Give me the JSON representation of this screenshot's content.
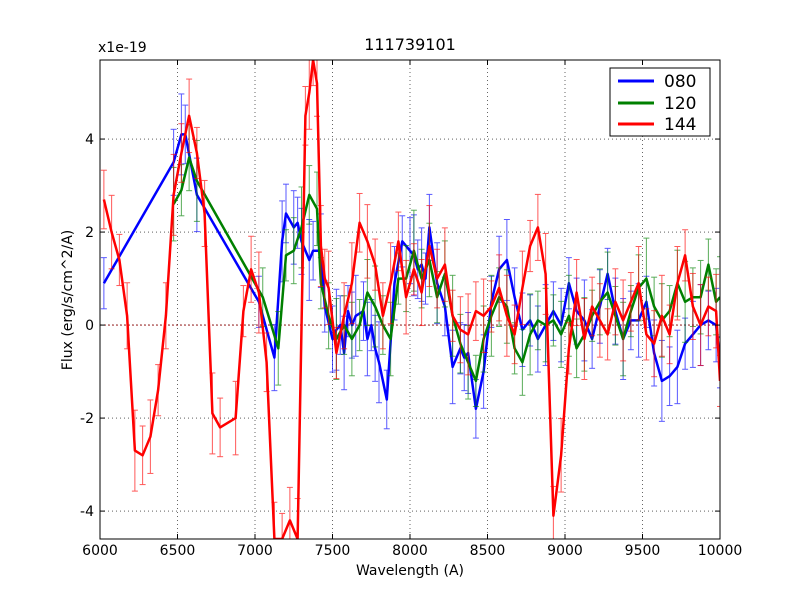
{
  "chart_data": {
    "type": "line",
    "title": "111739101",
    "xlabel": "Wavelength (A)",
    "ylabel": "Flux (erg/s/cm^2/A)",
    "y_scale_label": "x1e-19",
    "xlim": [
      6000,
      10000
    ],
    "ylim": [
      -4.6,
      5.7
    ],
    "xticks": [
      6000,
      6500,
      7000,
      7500,
      8000,
      8500,
      9000,
      9500,
      10000
    ],
    "yticks": [
      -4,
      -2,
      0,
      2,
      4
    ],
    "grid": true,
    "legend_position": "top-right",
    "series": [
      {
        "name": "080",
        "color": "#0000ff",
        "x": [
          6025,
          6475,
          6525,
          6550,
          6625,
          7025,
          7125,
          7175,
          7200,
          7250,
          7275,
          7300,
          7350,
          7375,
          7425,
          7450,
          7500,
          7525,
          7550,
          7575,
          7600,
          7625,
          7650,
          7700,
          7725,
          7750,
          7775,
          7800,
          7850,
          7900,
          7950,
          8000,
          8025,
          8050,
          8075,
          8100,
          8125,
          8175,
          8225,
          8275,
          8325,
          8350,
          8375,
          8425,
          8475,
          8525,
          8575,
          8625,
          8675,
          8725,
          8775,
          8825,
          8875,
          8925,
          8975,
          9025,
          9075,
          9125,
          9175,
          9225,
          9275,
          9325,
          9375,
          9425,
          9475,
          9525,
          9575,
          9625,
          9675,
          9725,
          9775,
          9825,
          9875,
          9925,
          9975,
          10000
        ],
        "y": [
          0.9,
          3.5,
          4.1,
          4.1,
          2.8,
          0.5,
          -0.7,
          1.8,
          2.4,
          2.1,
          2.2,
          1.8,
          1.4,
          1.6,
          1.6,
          0.4,
          -0.3,
          -0.1,
          0.0,
          -0.6,
          0.3,
          0.0,
          0.2,
          0.3,
          -0.3,
          0.0,
          -0.5,
          -0.8,
          -1.6,
          0.9,
          1.8,
          1.6,
          1.5,
          1.2,
          1.3,
          1.0,
          2.1,
          0.9,
          0.4,
          -0.9,
          -0.5,
          -0.7,
          -0.6,
          -1.8,
          -1.0,
          0.5,
          1.2,
          1.4,
          0.6,
          -0.1,
          0.1,
          -0.3,
          0.0,
          0.3,
          0.0,
          0.9,
          0.3,
          0.1,
          -0.3,
          0.4,
          1.1,
          0.3,
          -0.3,
          0.1,
          0.1,
          0.5,
          -0.6,
          -1.2,
          -1.1,
          -0.9,
          -0.4,
          -0.2,
          0.0,
          0.1,
          0.0,
          -0.8
        ]
      },
      {
        "name": "120",
        "color": "#008000",
        "x": [
          6475,
          6525,
          6575,
          6625,
          7050,
          7150,
          7200,
          7250,
          7300,
          7350,
          7400,
          7425,
          7475,
          7525,
          7575,
          7625,
          7675,
          7725,
          7775,
          7825,
          7875,
          7925,
          7975,
          8025,
          8075,
          8125,
          8175,
          8225,
          8275,
          8325,
          8375,
          8425,
          8475,
          8525,
          8575,
          8625,
          8675,
          8725,
          8775,
          8825,
          8875,
          8925,
          8975,
          9025,
          9075,
          9125,
          9175,
          9225,
          9275,
          9325,
          9375,
          9425,
          9475,
          9525,
          9575,
          9625,
          9675,
          9725,
          9775,
          9825,
          9875,
          9925,
          9975,
          10000
        ],
        "y": [
          2.6,
          2.9,
          3.6,
          3.1,
          0.6,
          -0.5,
          1.5,
          1.6,
          2.1,
          2.8,
          2.5,
          0.9,
          0.2,
          -0.3,
          0.0,
          -0.3,
          0.0,
          0.7,
          0.4,
          0.0,
          -0.3,
          1.0,
          1.0,
          1.6,
          1.0,
          1.4,
          0.6,
          1.1,
          0.2,
          -0.4,
          -0.8,
          -1.2,
          -0.3,
          0.2,
          0.6,
          0.4,
          -0.5,
          -0.8,
          -0.2,
          0.1,
          0.0,
          0.1,
          -0.2,
          0.2,
          -0.5,
          -0.2,
          0.2,
          0.5,
          0.7,
          0.2,
          -0.3,
          0.3,
          0.8,
          1.0,
          0.4,
          0.1,
          0.3,
          0.9,
          0.5,
          0.6,
          0.6,
          1.3,
          0.5,
          0.6
        ]
      },
      {
        "name": "144",
        "color": "#ff0000",
        "x": [
          6025,
          6075,
          6125,
          6175,
          6225,
          6275,
          6325,
          6375,
          6425,
          6475,
          6525,
          6575,
          6625,
          6675,
          6725,
          6775,
          6875,
          6925,
          6975,
          7025,
          7075,
          7125,
          7175,
          7225,
          7275,
          7325,
          7350,
          7375,
          7400,
          7425,
          7450,
          7475,
          7525,
          7575,
          7625,
          7675,
          7725,
          7775,
          7825,
          7875,
          7925,
          7975,
          8025,
          8075,
          8125,
          8175,
          8225,
          8275,
          8325,
          8375,
          8425,
          8475,
          8525,
          8575,
          8625,
          8675,
          8725,
          8775,
          8825,
          8875,
          8925,
          8975,
          9025,
          9075,
          9125,
          9175,
          9225,
          9275,
          9325,
          9375,
          9425,
          9475,
          9525,
          9575,
          9625,
          9675,
          9725,
          9775,
          9825,
          9875,
          9925,
          9975,
          10000
        ],
        "y": [
          2.7,
          2.0,
          1.4,
          0.2,
          -2.7,
          -2.8,
          -2.4,
          -1.4,
          0.2,
          2.8,
          3.7,
          4.5,
          3.7,
          2.4,
          -1.9,
          -2.2,
          -2.0,
          0.3,
          1.2,
          0.7,
          -0.8,
          -4.6,
          -4.6,
          -4.2,
          -4.6,
          4.5,
          5.0,
          5.7,
          5.2,
          1.7,
          1.0,
          0.8,
          -0.6,
          0.2,
          0.9,
          2.2,
          1.8,
          1.3,
          0.2,
          0.9,
          1.8,
          0.6,
          1.2,
          0.7,
          1.7,
          1.0,
          1.3,
          0.2,
          -0.1,
          -0.2,
          0.3,
          0.2,
          0.4,
          0.8,
          0.2,
          -0.2,
          0.8,
          1.7,
          2.1,
          1.1,
          -4.1,
          -2.8,
          -0.5,
          0.7,
          -0.3,
          0.4,
          0.1,
          -0.2,
          0.5,
          0.1,
          0.5,
          0.9,
          -0.2,
          -0.4,
          0.2,
          -0.2,
          0.9,
          1.5,
          0.4,
          0.0,
          0.4,
          0.3,
          -1.2
        ]
      }
    ]
  }
}
